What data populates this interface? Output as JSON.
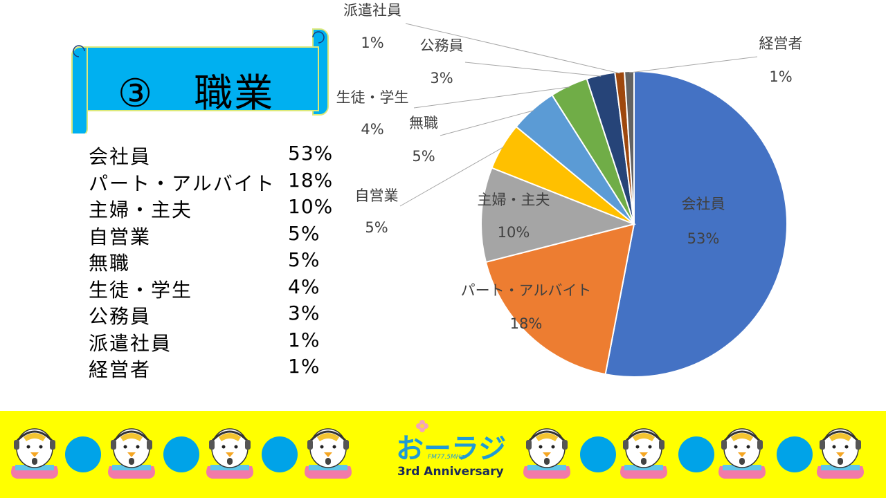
{
  "title": "③　職業",
  "stats": [
    {
      "label": "会社員",
      "value": "53%"
    },
    {
      "label": "パート・アルバイト",
      "value": "18%"
    },
    {
      "label": "主婦・主夫",
      "value": "10%"
    },
    {
      "label": "自営業",
      "value": "5%"
    },
    {
      "label": "無職",
      "value": "5%"
    },
    {
      "label": "生徒・学生",
      "value": "4%"
    },
    {
      "label": "公務員",
      "value": "3%"
    },
    {
      "label": "派遣社員",
      "value": "1%"
    },
    {
      "label": "経営者",
      "value": "1%"
    }
  ],
  "chart_data": {
    "type": "pie",
    "title": "",
    "start": "12 o'clock, clockwise",
    "slices": [
      {
        "label": "会社員",
        "value": 53,
        "display": "53%",
        "color": "#4472c4"
      },
      {
        "label": "パート・アルバイト",
        "value": 18,
        "display": "18%",
        "color": "#ed7d31"
      },
      {
        "label": "主婦・主夫",
        "value": 10,
        "display": "10%",
        "color": "#a5a5a5"
      },
      {
        "label": "自営業",
        "value": 5,
        "display": "5%",
        "color": "#ffc000"
      },
      {
        "label": "無職",
        "value": 5,
        "display": "5%",
        "color": "#5b9bd5"
      },
      {
        "label": "生徒・学生",
        "value": 4,
        "display": "4%",
        "color": "#70ad47"
      },
      {
        "label": "公務員",
        "value": 3,
        "display": "3%",
        "color": "#264478"
      },
      {
        "label": "派遣社員",
        "value": 1,
        "display": "1%",
        "color": "#9e480e"
      },
      {
        "label": "経営者",
        "value": 1,
        "display": "1%",
        "color": "#636363"
      }
    ]
  },
  "footer": {
    "logo_text": "おーラジ",
    "logo_freq": "FM77.5MHz",
    "logo_sub": "3rd Anniversary",
    "background": "#ffff00",
    "dot_color": "#00a3e8"
  }
}
